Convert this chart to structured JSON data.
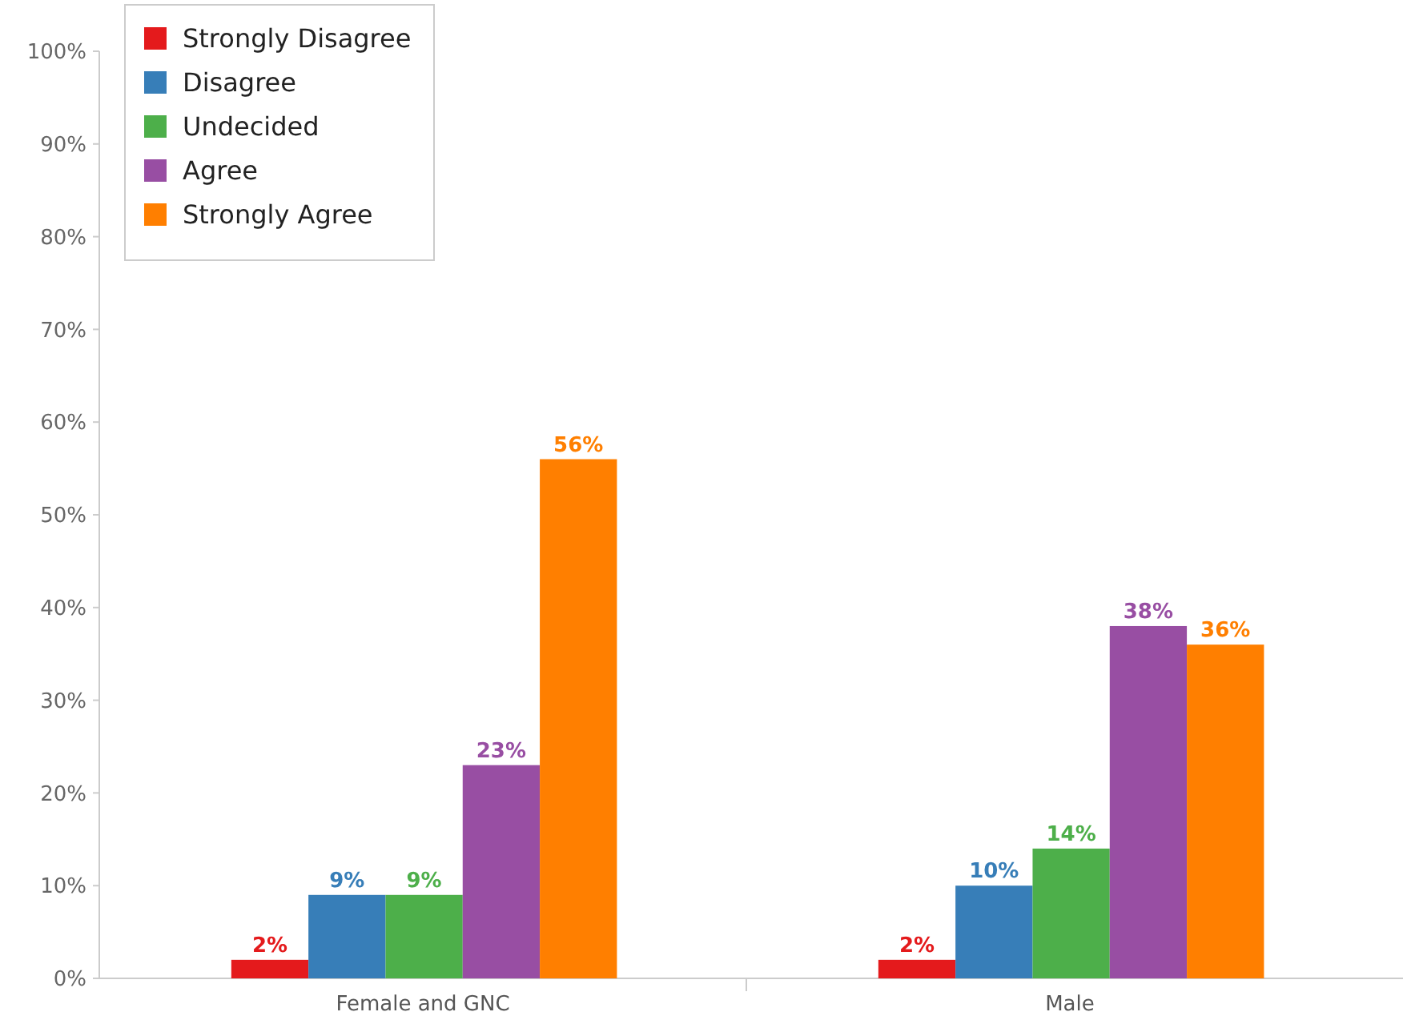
{
  "chart_data": {
    "type": "bar",
    "categories": [
      "Female and GNC",
      "Male"
    ],
    "series": [
      {
        "name": "Strongly Disagree",
        "color": "#e41a1c",
        "values": [
          2,
          2
        ],
        "value_labels": [
          "2%",
          "2%"
        ]
      },
      {
        "name": "Disagree",
        "color": "#377eb8",
        "values": [
          9,
          10
        ],
        "value_labels": [
          "9%",
          "10%"
        ]
      },
      {
        "name": "Undecided",
        "color": "#4daf4a",
        "values": [
          9,
          14
        ],
        "value_labels": [
          "9%",
          "14%"
        ]
      },
      {
        "name": "Agree",
        "color": "#984ea3",
        "values": [
          23,
          38
        ],
        "value_labels": [
          "23%",
          "38%"
        ]
      },
      {
        "name": "Strongly Agree",
        "color": "#ff7f00",
        "values": [
          56,
          36
        ],
        "value_labels": [
          "56%",
          "36%"
        ]
      }
    ],
    "ylim": [
      0,
      100
    ],
    "yticks": [
      {
        "value": 0,
        "label": "0%"
      },
      {
        "value": 10,
        "label": "10%"
      },
      {
        "value": 20,
        "label": "20%"
      },
      {
        "value": 30,
        "label": "30%"
      },
      {
        "value": 40,
        "label": "40%"
      },
      {
        "value": 50,
        "label": "50%"
      },
      {
        "value": 60,
        "label": "60%"
      },
      {
        "value": 70,
        "label": "70%"
      },
      {
        "value": 80,
        "label": "80%"
      },
      {
        "value": 90,
        "label": "90%"
      },
      {
        "value": 100,
        "label": "100%"
      }
    ],
    "legend": "top left",
    "grid": false
  }
}
